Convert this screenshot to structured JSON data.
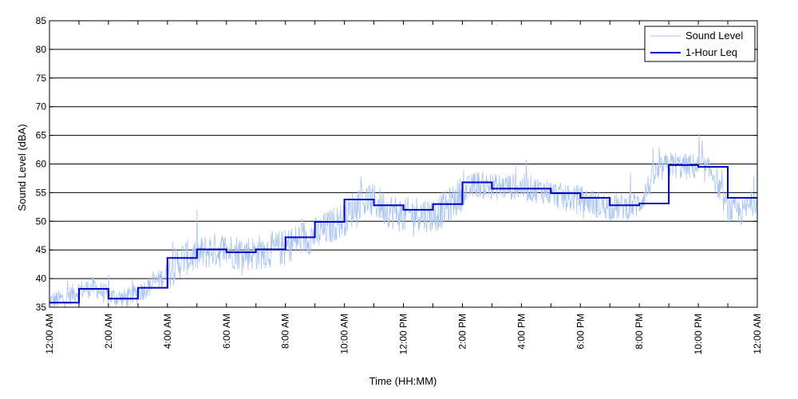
{
  "chart_data": {
    "type": "line",
    "title": "",
    "xlabel": "Time (HH:MM)",
    "ylabel": "Sound Level (dBA)",
    "xlim": [
      0,
      24
    ],
    "ylim": [
      35,
      85
    ],
    "yticks": [
      35,
      40,
      45,
      50,
      55,
      60,
      65,
      70,
      75,
      80,
      85
    ],
    "xticks": [
      0,
      2,
      4,
      6,
      8,
      10,
      12,
      14,
      16,
      18,
      20,
      22,
      24
    ],
    "xtick_labels": [
      "12:00 AM",
      "2:00 AM",
      "4:00 AM",
      "6:00 AM",
      "8:00 AM",
      "10:00 AM",
      "12:00 PM",
      "2:00 PM",
      "4:00 PM",
      "6:00 PM",
      "8:00 PM",
      "10:00 PM",
      "12:00 AM"
    ],
    "grid": "horizontal",
    "legend_position": "top-right",
    "series": [
      {
        "name": "Sound Level",
        "color": "#a9c4f0",
        "style": "noisy trace",
        "x": [
          0,
          0.5,
          1,
          1.5,
          2,
          2.5,
          3,
          3.5,
          4,
          4.5,
          5,
          5.5,
          6,
          6.5,
          7,
          7.5,
          8,
          8.5,
          9,
          9.5,
          10,
          10.5,
          11,
          11.5,
          12,
          12.5,
          13,
          13.5,
          14,
          14.5,
          15,
          15.5,
          16,
          16.5,
          17,
          17.5,
          18,
          18.5,
          19,
          19.5,
          20,
          20.5,
          21,
          21.5,
          22,
          22.5,
          23,
          23.5,
          24
        ],
        "y": [
          36,
          36.5,
          38,
          38.5,
          37,
          36.5,
          37.5,
          39,
          41,
          43.5,
          44,
          45,
          45,
          44.5,
          44.5,
          45,
          45.5,
          47,
          47.5,
          49,
          50.5,
          53.5,
          53.5,
          52,
          51,
          51.5,
          51,
          52.5,
          55,
          56.5,
          56,
          56,
          56,
          55.5,
          55,
          54,
          54,
          53,
          52.5,
          52.5,
          53,
          58,
          60,
          59.5,
          59.5,
          58.5,
          52,
          51.5,
          54
        ]
      },
      {
        "name": "1-Hour Leq",
        "color": "#0000cc",
        "style": "step",
        "hours": [
          0,
          1,
          2,
          3,
          4,
          5,
          6,
          7,
          8,
          9,
          10,
          11,
          12,
          13,
          14,
          15,
          16,
          17,
          18,
          19,
          20,
          21,
          22,
          23
        ],
        "values": [
          35.8,
          38.2,
          36.5,
          38.4,
          43.6,
          45.1,
          44.6,
          45.1,
          47.2,
          49.9,
          53.8,
          52.8,
          52.0,
          53.0,
          56.8,
          55.7,
          55.7,
          54.9,
          54.1,
          52.8,
          53.1,
          59.8,
          59.5,
          54.1
        ]
      }
    ]
  }
}
